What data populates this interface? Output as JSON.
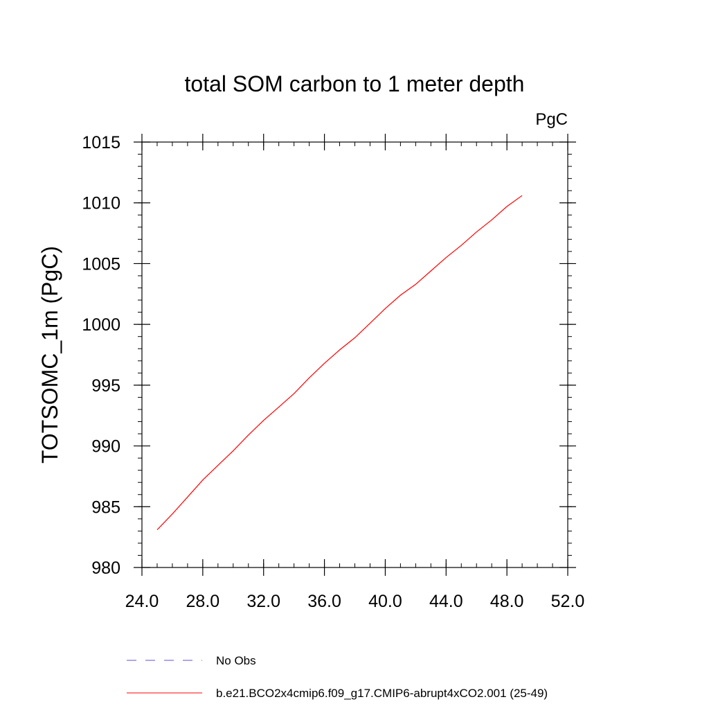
{
  "chart_data": {
    "type": "line",
    "title": "total SOM carbon to 1 meter depth",
    "units_label": "PgC",
    "ylabel": "TOTSOMC_1m  (PgC)",
    "xlabel": "",
    "xlim": [
      24,
      52
    ],
    "ylim": [
      980,
      1015
    ],
    "x_major_ticks": [
      24,
      28,
      32,
      36,
      40,
      44,
      48,
      52
    ],
    "x_tick_labels": [
      "24.0",
      "28.0",
      "32.0",
      "36.0",
      "40.0",
      "44.0",
      "48.0",
      "52.0"
    ],
    "x_minor_step": 1,
    "y_major_ticks": [
      980,
      985,
      990,
      995,
      1000,
      1005,
      1010,
      1015
    ],
    "y_tick_labels": [
      "980",
      "985",
      "990",
      "995",
      "1000",
      "1005",
      "1010",
      "1015"
    ],
    "y_minor_step": 1,
    "grid": false,
    "legend_position": "bottom",
    "series": [
      {
        "name": "No Obs",
        "color": "#5b4fd6",
        "dash": "dashed",
        "x": [],
        "y": []
      },
      {
        "name": "b.e21.BCO2x4cmip6.f09_g17.CMIP6-abrupt4xCO2.001 (25-49)",
        "color": "#ff0000",
        "dash": "solid",
        "x": [
          25,
          26,
          27,
          28,
          29,
          30,
          31,
          32,
          33,
          34,
          35,
          36,
          37,
          38,
          39,
          40,
          41,
          42,
          43,
          44,
          45,
          46,
          47,
          48,
          49
        ],
        "y": [
          983.1,
          984.4,
          985.8,
          987.2,
          988.4,
          989.6,
          990.9,
          992.1,
          993.2,
          994.3,
          995.6,
          996.8,
          997.9,
          998.9,
          1000.1,
          1001.3,
          1002.4,
          1003.3,
          1004.4,
          1005.5,
          1006.5,
          1007.6,
          1008.6,
          1009.7,
          1010.6
        ]
      }
    ]
  }
}
